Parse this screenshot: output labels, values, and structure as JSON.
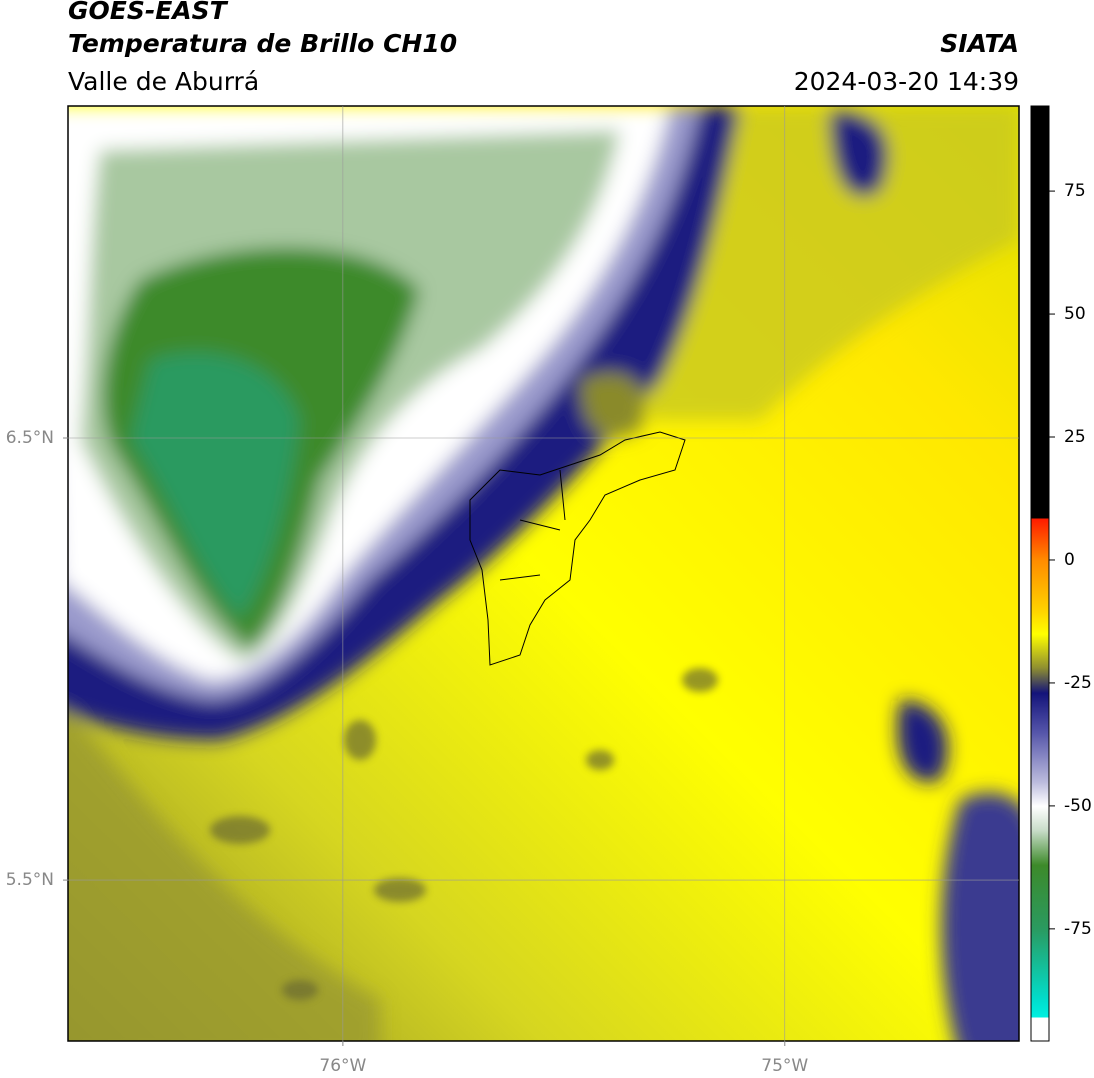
{
  "header": {
    "title": "GOES-EAST",
    "subtitle": "Temperatura de Brillo CH10",
    "region": "Valle de Aburrá",
    "source": "SIATA",
    "datetime": "2024-03-20 14:39"
  },
  "map": {
    "lon_range": [
      -76.622,
      -74.47
    ],
    "lat_range": [
      5.136,
      7.251
    ],
    "lon_ticks": [
      {
        "value": -76,
        "label": "76°W"
      },
      {
        "value": -75,
        "label": "75°W"
      }
    ],
    "lat_ticks": [
      {
        "value": 6.5,
        "label": "6.5°N"
      },
      {
        "value": 5.5,
        "label": "5.5°N"
      }
    ],
    "grid": true
  },
  "colorbar": {
    "range": [
      -97.8,
      92.3
    ],
    "ticks": [
      75,
      50,
      25,
      0,
      -25,
      -50,
      -75
    ]
  }
}
